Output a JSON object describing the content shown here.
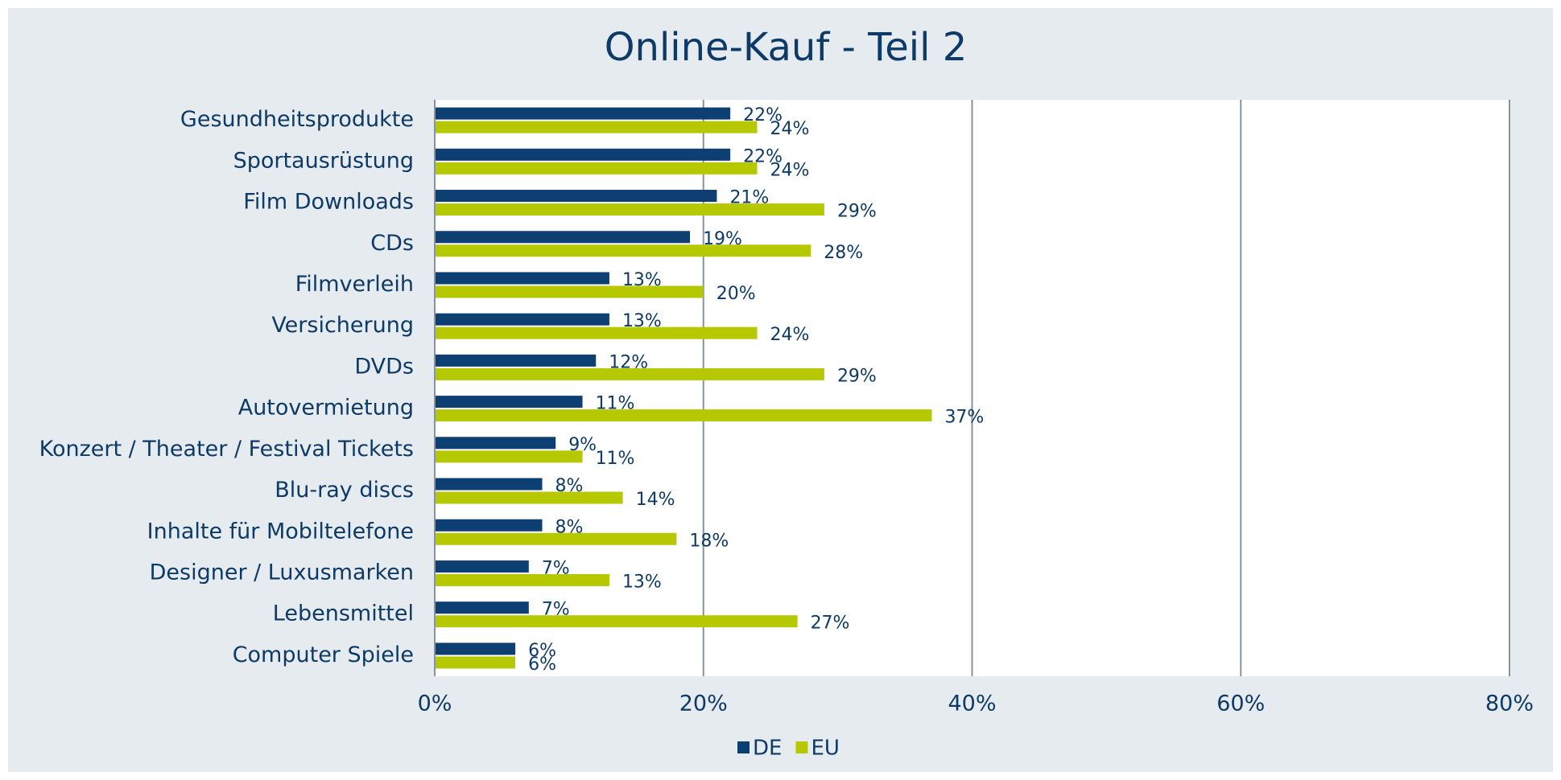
{
  "chart_data": {
    "type": "hbar",
    "title": "Online-Kauf - Teil 2",
    "categories": [
      "Gesundheitsprodukte",
      "Sportausrüstung",
      "Film Downloads",
      "CDs",
      "Filmverleih",
      "Versicherung",
      "DVDs",
      "Autovermietung",
      "Konzert / Theater / Festival Tickets",
      "Blu-ray discs",
      "Inhalte für Mobiltelefone",
      "Designer / Luxusmarken",
      "Lebensmittel",
      "Computer Spiele"
    ],
    "series": [
      {
        "name": "DE",
        "color": "#0d3f73",
        "values": [
          22,
          22,
          21,
          19,
          13,
          13,
          12,
          11,
          9,
          8,
          8,
          7,
          7,
          6
        ],
        "value_labels": [
          "22%",
          "22%",
          "21%",
          "19%",
          "13%",
          "13%",
          "12%",
          "11%",
          "9%",
          "8%",
          "8%",
          "7%",
          "7%",
          "6%"
        ]
      },
      {
        "name": "EU",
        "color": "#b5c800",
        "values": [
          24,
          24,
          29,
          28,
          20,
          24,
          29,
          37,
          11,
          14,
          18,
          13,
          27,
          6
        ],
        "value_labels": [
          "24%",
          "24%",
          "29%",
          "28%",
          "20%",
          "24%",
          "29%",
          "37%",
          "11%",
          "14%",
          "18%",
          "13%",
          "27%",
          "6%"
        ]
      }
    ],
    "xlim": [
      0,
      80
    ],
    "xticks": [
      {
        "value": 0,
        "label": "0%"
      },
      {
        "value": 20,
        "label": "20%"
      },
      {
        "value": 40,
        "label": "40%"
      },
      {
        "value": 60,
        "label": "60%"
      },
      {
        "value": 80,
        "label": "80%"
      }
    ],
    "grid": true,
    "legend": "bottom"
  }
}
